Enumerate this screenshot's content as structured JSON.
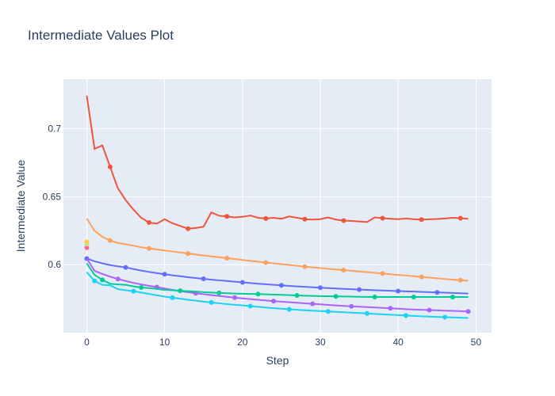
{
  "chart_data": {
    "type": "line",
    "title": "Intermediate Values Plot",
    "xlabel": "Step",
    "ylabel": "Intermediate Value",
    "xlim": [
      -3,
      52
    ],
    "ylim": [
      0.55,
      0.7365
    ],
    "x_ticks": [
      0,
      10,
      20,
      30,
      40,
      50
    ],
    "y_ticks": [
      0.6,
      0.65,
      0.7
    ],
    "grid": true,
    "legend": "none",
    "colors": [
      "#ef553b",
      "#ffa15a",
      "#636efa",
      "#ab63fa",
      "#00cc96",
      "#19d3f3",
      "#ff6692",
      "#b6e880",
      "#fecb52"
    ],
    "series": [
      {
        "color": "#ef553b",
        "x": [
          0,
          1,
          2,
          3,
          4,
          5,
          6,
          7,
          8,
          9,
          10,
          11,
          12,
          13,
          14,
          15,
          16,
          17,
          18,
          19,
          20,
          21,
          22,
          23,
          24,
          25,
          26,
          27,
          28,
          29,
          30,
          31,
          32,
          33,
          34,
          35,
          36,
          37,
          38,
          39,
          40,
          41,
          42,
          43,
          44,
          45,
          46,
          47,
          48,
          49
        ],
        "y": [
          0.7245,
          0.6852,
          0.6878,
          0.672,
          0.6562,
          0.6475,
          0.6405,
          0.6345,
          0.631,
          0.6302,
          0.6335,
          0.6305,
          0.6285,
          0.6265,
          0.627,
          0.628,
          0.6385,
          0.636,
          0.6355,
          0.6348,
          0.6352,
          0.6362,
          0.6345,
          0.634,
          0.6345,
          0.6338,
          0.6355,
          0.6345,
          0.6335,
          0.6332,
          0.6335,
          0.6348,
          0.6332,
          0.6325,
          0.6322,
          0.6318,
          0.6314,
          0.6348,
          0.6342,
          0.6338,
          0.6335,
          0.634,
          0.6335,
          0.6332,
          0.6334,
          0.6336,
          0.634,
          0.6345,
          0.6342,
          0.6338
        ],
        "markers": [
          3,
          8,
          13,
          18,
          23,
          28,
          33,
          38,
          43,
          48
        ]
      },
      {
        "color": "#ffa15a",
        "x": [
          0,
          1,
          2,
          3,
          4,
          5,
          6,
          7,
          8,
          9,
          10,
          11,
          12,
          13,
          14,
          15,
          16,
          17,
          18,
          19,
          20,
          21,
          22,
          23,
          24,
          25,
          26,
          27,
          28,
          29,
          30,
          31,
          32,
          33,
          34,
          35,
          36,
          37,
          38,
          39,
          40,
          41,
          42,
          43,
          44,
          45,
          46,
          47,
          48,
          49
        ],
        "y": [
          0.634,
          0.625,
          0.6205,
          0.6178,
          0.616,
          0.615,
          0.614,
          0.6128,
          0.612,
          0.6112,
          0.6105,
          0.6097,
          0.609,
          0.6082,
          0.6075,
          0.6068,
          0.6062,
          0.6055,
          0.6048,
          0.6042,
          0.6035,
          0.6028,
          0.6022,
          0.6016,
          0.601,
          0.6004,
          0.5998,
          0.5992,
          0.5986,
          0.598,
          0.5975,
          0.597,
          0.5965,
          0.596,
          0.5955,
          0.595,
          0.5945,
          0.594,
          0.5935,
          0.593,
          0.5925,
          0.592,
          0.5915,
          0.591,
          0.5905,
          0.59,
          0.5895,
          0.589,
          0.5886,
          0.5882
        ],
        "markers": [
          3,
          8,
          13,
          18,
          23,
          28,
          33,
          38,
          43,
          48
        ]
      },
      {
        "color": "#636efa",
        "x": [
          0,
          1,
          2,
          3,
          4,
          5,
          6,
          7,
          8,
          9,
          10,
          11,
          12,
          13,
          14,
          15,
          16,
          17,
          18,
          19,
          20,
          21,
          22,
          23,
          24,
          25,
          26,
          27,
          28,
          29,
          30,
          31,
          32,
          33,
          34,
          35,
          36,
          37,
          38,
          39,
          40,
          41,
          42,
          43,
          44,
          45,
          46,
          47,
          48,
          49
        ],
        "y": [
          0.6045,
          0.6025,
          0.601,
          0.5997,
          0.5988,
          0.598,
          0.5968,
          0.5957,
          0.5947,
          0.5938,
          0.593,
          0.5922,
          0.5915,
          0.5908,
          0.5902,
          0.5896,
          0.589,
          0.5885,
          0.588,
          0.5875,
          0.587,
          0.5865,
          0.586,
          0.5856,
          0.5852,
          0.5848,
          0.5844,
          0.584,
          0.5837,
          0.5834,
          0.5831,
          0.5828,
          0.5825,
          0.5822,
          0.582,
          0.5817,
          0.5815,
          0.5812,
          0.581,
          0.5808,
          0.5806,
          0.5804,
          0.5802,
          0.58,
          0.5798,
          0.5796,
          0.5794,
          0.5792,
          0.579,
          0.5788
        ],
        "markers": [
          0,
          5,
          10,
          15,
          20,
          25,
          30,
          35,
          40,
          45
        ]
      },
      {
        "color": "#ab63fa",
        "x": [
          0,
          1,
          2,
          3,
          4,
          5,
          6,
          7,
          8,
          9,
          10,
          11,
          12,
          13,
          14,
          15,
          16,
          17,
          18,
          19,
          20,
          21,
          22,
          23,
          24,
          25,
          26,
          27,
          28,
          29,
          30,
          31,
          32,
          33,
          34,
          35,
          36,
          37,
          38,
          39,
          40,
          41,
          42,
          43,
          44,
          45,
          46,
          47,
          48,
          49
        ],
        "y": [
          0.6045,
          0.5955,
          0.5932,
          0.5912,
          0.5895,
          0.588,
          0.5866,
          0.5855,
          0.5845,
          0.5835,
          0.5825,
          0.5815,
          0.5806,
          0.5798,
          0.579,
          0.5783,
          0.5776,
          0.577,
          0.5764,
          0.5758,
          0.5752,
          0.5747,
          0.5742,
          0.5737,
          0.5732,
          0.5728,
          0.5724,
          0.572,
          0.5716,
          0.5712,
          0.5708,
          0.5704,
          0.57,
          0.5697,
          0.5694,
          0.5691,
          0.5688,
          0.5685,
          0.5682,
          0.5679,
          0.5676,
          0.5673,
          0.567,
          0.5668,
          0.5666,
          0.5664,
          0.5662,
          0.566,
          0.5658,
          0.5656
        ],
        "markers": [
          4,
          9,
          14,
          19,
          24,
          29,
          34,
          39,
          44,
          49
        ]
      },
      {
        "color": "#00cc96",
        "x": [
          0,
          1,
          2,
          3,
          4,
          5,
          6,
          7,
          8,
          9,
          10,
          11,
          12,
          13,
          14,
          15,
          16,
          17,
          18,
          19,
          20,
          21,
          22,
          23,
          24,
          25,
          26,
          27,
          28,
          29,
          30,
          31,
          32,
          33,
          34,
          35,
          36,
          37,
          38,
          39,
          40,
          41,
          42,
          43,
          44,
          45,
          46,
          47,
          48,
          49
        ],
        "y": [
          0.601,
          0.5925,
          0.5888,
          0.586,
          0.5855,
          0.5852,
          0.584,
          0.5832,
          0.5828,
          0.5822,
          0.5815,
          0.5812,
          0.5808,
          0.5805,
          0.5802,
          0.5798,
          0.5795,
          0.5792,
          0.579,
          0.5788,
          0.5786,
          0.5785,
          0.5784,
          0.5782,
          0.578,
          0.5778,
          0.5776,
          0.5774,
          0.5772,
          0.577,
          0.5769,
          0.5768,
          0.5767,
          0.5766,
          0.5765,
          0.5764,
          0.5763,
          0.5762,
          0.5762,
          0.5762,
          0.5762,
          0.5762,
          0.5762,
          0.5762,
          0.5762,
          0.5762,
          0.5762,
          0.5762,
          0.5762,
          0.5762
        ],
        "markers": [
          2,
          7,
          12,
          17,
          22,
          27,
          32,
          37,
          42,
          47
        ]
      },
      {
        "color": "#19d3f3",
        "x": [
          0,
          1,
          2,
          3,
          4,
          5,
          6,
          7,
          8,
          9,
          10,
          11,
          12,
          13,
          14,
          15,
          16,
          17,
          18,
          19,
          20,
          21,
          22,
          23,
          24,
          25,
          26,
          27,
          28,
          29,
          30,
          31,
          32,
          33,
          34,
          35,
          36,
          37,
          38,
          39,
          40,
          41,
          42,
          43,
          44,
          45,
          46,
          47,
          48,
          49
        ],
        "y": [
          0.5945,
          0.588,
          0.5852,
          0.5848,
          0.582,
          0.5812,
          0.5805,
          0.5795,
          0.5785,
          0.5775,
          0.5765,
          0.5757,
          0.575,
          0.5742,
          0.5735,
          0.5728,
          0.5722,
          0.5716,
          0.571,
          0.5705,
          0.57,
          0.5695,
          0.569,
          0.5685,
          0.568,
          0.5676,
          0.5672,
          0.5668,
          0.5665,
          0.5662,
          0.5659,
          0.5656,
          0.5653,
          0.565,
          0.5647,
          0.5644,
          0.5641,
          0.5638,
          0.5635,
          0.5632,
          0.5629,
          0.5626,
          0.5623,
          0.562,
          0.5618,
          0.5616,
          0.5614,
          0.5612,
          0.561,
          0.5608
        ],
        "markers": [
          1,
          6,
          11,
          16,
          21,
          26,
          31,
          36,
          41,
          46
        ]
      },
      {
        "color": "#ff6692",
        "x": [
          0
        ],
        "y": [
          0.6125
        ],
        "markers": [
          0
        ]
      },
      {
        "color": "#b6e880",
        "x": [
          0
        ],
        "y": [
          0.6152
        ],
        "markers": [
          0
        ]
      },
      {
        "color": "#fecb52",
        "x": [
          0
        ],
        "y": [
          0.6168
        ],
        "markers": [
          0
        ]
      }
    ]
  }
}
